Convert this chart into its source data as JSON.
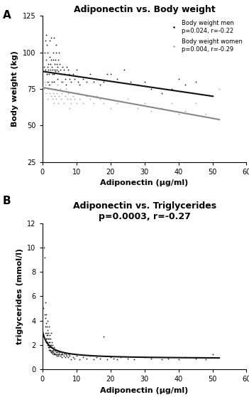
{
  "panel_A": {
    "title": "Adiponectin vs. Body weight",
    "xlabel": "Adiponectin (μg/ml)",
    "ylabel": "Body weight (kg)",
    "xlim": [
      0,
      60
    ],
    "ylim": [
      25,
      125
    ],
    "xticks": [
      0,
      10,
      20,
      30,
      40,
      50,
      60
    ],
    "yticks": [
      25,
      50,
      75,
      100,
      125
    ],
    "men_scatter_color": "#222222",
    "women_scatter_color": "#aaaaaa",
    "men_line_color": "#111111",
    "women_line_color": "#888888",
    "legend_men_label": "Body weight men\np=0.024, r=-0.22",
    "legend_women_label": "Body weight women\np=0.004, r=-0.29",
    "men_x": [
      0.5,
      0.7,
      0.8,
      1.0,
      1.1,
      1.2,
      1.3,
      1.4,
      1.5,
      1.5,
      1.6,
      1.7,
      1.8,
      1.9,
      2.0,
      2.1,
      2.2,
      2.3,
      2.4,
      2.5,
      2.6,
      2.7,
      2.8,
      2.9,
      3.0,
      3.1,
      3.2,
      3.3,
      3.4,
      3.5,
      3.6,
      3.7,
      3.8,
      3.9,
      4.0,
      4.1,
      4.2,
      4.3,
      4.4,
      4.5,
      4.6,
      4.7,
      4.8,
      5.0,
      5.2,
      5.5,
      5.7,
      6.0,
      6.3,
      6.5,
      6.8,
      7.0,
      7.2,
      7.5,
      7.8,
      8.0,
      8.5,
      9.0,
      9.5,
      10.0,
      10.5,
      11.0,
      12.0,
      13.0,
      14.0,
      15.0,
      16.0,
      17.0,
      18.0,
      19.0,
      20.0,
      22.0,
      24.0,
      26.0,
      28.0,
      30.0,
      32.0,
      35.0,
      38.0,
      40.0,
      42.0,
      45.0,
      50.0
    ],
    "men_y": [
      90,
      100,
      88,
      108,
      112,
      95,
      85,
      105,
      90,
      80,
      100,
      88,
      92,
      78,
      85,
      97,
      108,
      92,
      88,
      110,
      95,
      80,
      90,
      85,
      88,
      100,
      95,
      110,
      85,
      80,
      92,
      88,
      95,
      87,
      100,
      105,
      92,
      88,
      82,
      90,
      95,
      87,
      100,
      92,
      88,
      85,
      80,
      90,
      88,
      85,
      82,
      78,
      90,
      88,
      85,
      82,
      80,
      85,
      82,
      88,
      80,
      78,
      82,
      80,
      85,
      80,
      82,
      78,
      80,
      85,
      85,
      82,
      88,
      80,
      78,
      80,
      75,
      72,
      75,
      82,
      78,
      80,
      70
    ],
    "women_x": [
      0.5,
      0.7,
      0.9,
      1.1,
      1.3,
      1.5,
      1.7,
      1.9,
      2.1,
      2.3,
      2.5,
      2.7,
      2.9,
      3.1,
      3.3,
      3.5,
      3.7,
      3.9,
      4.1,
      4.3,
      4.5,
      4.7,
      4.9,
      5.2,
      5.5,
      5.8,
      6.1,
      6.4,
      6.7,
      7.0,
      7.3,
      7.6,
      7.9,
      8.2,
      8.5,
      9.0,
      9.5,
      10.0,
      10.5,
      11.0,
      12.0,
      13.0,
      14.0,
      15.0,
      16.0,
      17.0,
      18.0,
      20.0,
      22.0,
      25.0,
      28.0,
      30.0,
      32.0,
      35.0,
      38.0,
      40.0,
      42.0,
      45.0,
      48.0,
      50.0,
      52.0
    ],
    "women_y": [
      75,
      80,
      78,
      72,
      85,
      68,
      75,
      80,
      72,
      78,
      70,
      75,
      68,
      72,
      80,
      65,
      70,
      75,
      68,
      72,
      78,
      65,
      70,
      75,
      68,
      72,
      80,
      65,
      70,
      75,
      68,
      72,
      62,
      68,
      65,
      70,
      68,
      65,
      72,
      68,
      65,
      70,
      68,
      65,
      70,
      68,
      65,
      62,
      65,
      68,
      62,
      65,
      60,
      62,
      65,
      58,
      60,
      65,
      58,
      55,
      75
    ],
    "men_line_x": [
      0,
      50
    ],
    "men_line_y": [
      87,
      70
    ],
    "women_line_x": [
      0,
      52
    ],
    "women_line_y": [
      76,
      54
    ]
  },
  "panel_B": {
    "title": "Adiponectin vs. Triglycerides\np=0.0003, r=-0.27",
    "xlabel": "Adiponectin (μg/ml)",
    "ylabel": "triglycerides (mmol/l)",
    "xlim": [
      0,
      60
    ],
    "ylim": [
      0,
      12
    ],
    "xticks": [
      0,
      10,
      20,
      30,
      40,
      50,
      60
    ],
    "yticks": [
      0,
      2,
      4,
      6,
      8,
      10,
      12
    ],
    "scatter_color": "#222222",
    "curve_color": "#111111",
    "scatter_x": [
      0.3,
      0.5,
      0.6,
      0.7,
      0.8,
      0.9,
      1.0,
      1.0,
      1.1,
      1.1,
      1.2,
      1.2,
      1.3,
      1.3,
      1.4,
      1.4,
      1.5,
      1.5,
      1.5,
      1.6,
      1.6,
      1.7,
      1.7,
      1.8,
      1.8,
      1.9,
      1.9,
      2.0,
      2.0,
      2.0,
      2.1,
      2.1,
      2.2,
      2.2,
      2.3,
      2.3,
      2.4,
      2.4,
      2.5,
      2.5,
      2.5,
      2.6,
      2.6,
      2.7,
      2.7,
      2.8,
      2.8,
      2.9,
      3.0,
      3.0,
      3.1,
      3.2,
      3.3,
      3.4,
      3.5,
      3.6,
      3.7,
      3.8,
      3.9,
      4.0,
      4.1,
      4.2,
      4.3,
      4.4,
      4.5,
      4.6,
      4.7,
      4.8,
      4.9,
      5.0,
      5.2,
      5.4,
      5.6,
      5.8,
      6.0,
      6.3,
      6.5,
      6.8,
      7.0,
      7.2,
      7.5,
      7.8,
      8.0,
      8.5,
      9.0,
      9.5,
      10.0,
      11.0,
      12.0,
      13.0,
      14.0,
      15.0,
      16.0,
      17.0,
      18.0,
      19.0,
      20.0,
      21.0,
      22.0,
      23.0,
      25.0,
      27.0,
      30.0,
      32.0,
      35.0,
      37.0,
      40.0,
      42.0,
      45.0,
      48.0,
      50.0
    ],
    "scatter_y": [
      5.0,
      10.0,
      9.2,
      4.5,
      3.5,
      5.5,
      3.0,
      4.2,
      2.5,
      3.8,
      2.2,
      4.5,
      3.0,
      2.8,
      2.5,
      3.5,
      2.0,
      2.8,
      4.0,
      2.2,
      3.2,
      1.8,
      2.5,
      2.0,
      3.0,
      1.8,
      2.5,
      1.6,
      2.2,
      3.5,
      1.8,
      2.8,
      1.6,
      2.2,
      1.5,
      2.0,
      1.6,
      2.5,
      1.4,
      1.8,
      3.0,
      1.4,
      2.0,
      1.5,
      2.2,
      1.4,
      1.8,
      1.5,
      1.3,
      2.0,
      1.4,
      1.6,
      1.3,
      1.8,
      1.2,
      1.5,
      1.3,
      1.6,
      1.2,
      1.4,
      1.2,
      1.5,
      1.1,
      1.4,
      1.2,
      1.5,
      1.1,
      1.3,
      1.2,
      1.4,
      1.1,
      1.2,
      1.3,
      1.0,
      1.2,
      1.1,
      1.3,
      1.0,
      1.2,
      1.1,
      1.0,
      1.2,
      1.1,
      0.8,
      1.0,
      0.9,
      1.1,
      0.8,
      1.0,
      0.9,
      1.1,
      0.8,
      1.0,
      0.9,
      2.7,
      0.8,
      1.0,
      0.9,
      0.8,
      1.0,
      0.9,
      0.8,
      1.0,
      0.9,
      0.8,
      0.9,
      0.8,
      1.0,
      0.9,
      0.8,
      1.2
    ],
    "curve_a": 4.2,
    "curve_b": 1.8,
    "curve_c": 0.85
  }
}
